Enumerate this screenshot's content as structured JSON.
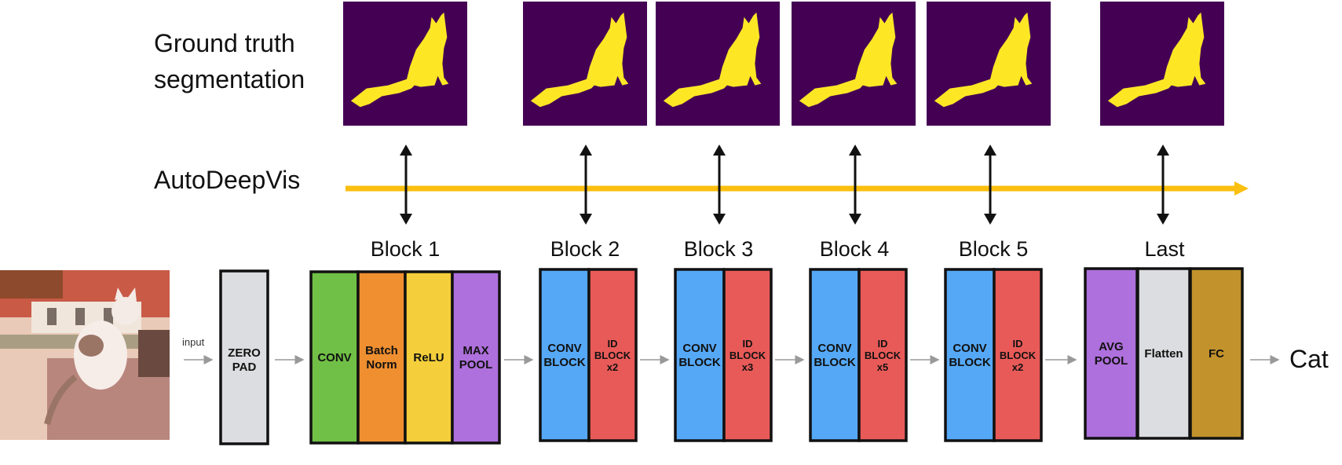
{
  "labels": {
    "ground_truth_line1": "Ground truth",
    "ground_truth_line2": "segmentation",
    "autodeepvis": "AutoDeepVis",
    "input": "input",
    "output": "Cat"
  },
  "block_titles": [
    "Block 1",
    "Block 2",
    "Block 3",
    "Block 4",
    "Block 5",
    "Last"
  ],
  "layers": {
    "zero_pad": [
      "ZERO",
      "PAD"
    ],
    "block1": [
      {
        "lines": [
          "CONV"
        ],
        "color": "#70bf46"
      },
      {
        "lines": [
          "Batch",
          "Norm"
        ],
        "color": "#ef8f30"
      },
      {
        "lines": [
          "ReLU"
        ],
        "color": "#f4cf3b"
      },
      {
        "lines": [
          "MAX",
          "POOL"
        ],
        "color": "#ae70dc"
      }
    ],
    "block2": [
      {
        "lines": [
          "CONV",
          "BLOCK"
        ]
      },
      {
        "lines": [
          "ID",
          "BLOCK",
          "x2"
        ]
      }
    ],
    "block3": [
      {
        "lines": [
          "CONV",
          "BLOCK"
        ]
      },
      {
        "lines": [
          "ID",
          "BLOCK",
          "x3"
        ]
      }
    ],
    "block4": [
      {
        "lines": [
          "CONV",
          "BLOCK"
        ]
      },
      {
        "lines": [
          "ID",
          "BLOCK",
          "x5"
        ]
      }
    ],
    "block5": [
      {
        "lines": [
          "CONV",
          "BLOCK"
        ]
      },
      {
        "lines": [
          "ID",
          "BLOCK",
          "x2"
        ]
      }
    ],
    "last": [
      {
        "lines": [
          "AVG",
          "POOL"
        ],
        "color": "#ae70dc"
      },
      {
        "lines": [
          "Flatten"
        ],
        "color": "#dcdde0"
      },
      {
        "lines": [
          "FC"
        ],
        "color": "#c2922c"
      }
    ]
  },
  "colors": {
    "timeline": "#fbbf0f",
    "seg_background": "#440154",
    "seg_foreground": "#fde725",
    "conv_block": "#55a8f6",
    "id_block": "#e85a58",
    "zero_pad": "#dcdde0"
  },
  "icons": [
    "cat-photo",
    "cat-silhouette",
    "double-arrow",
    "right-arrow"
  ]
}
